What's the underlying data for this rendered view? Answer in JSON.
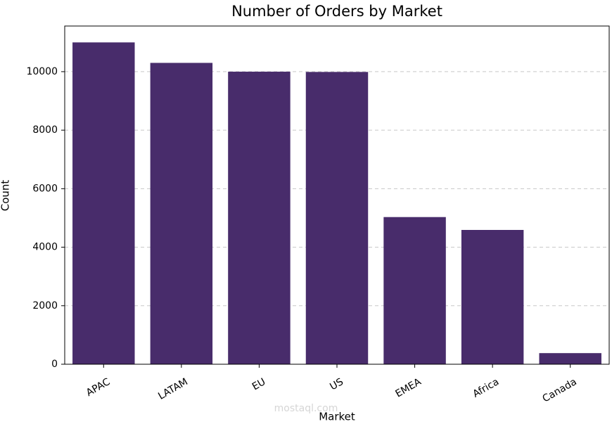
{
  "chart_data": {
    "type": "bar",
    "title": "Number of Orders by Market",
    "x_label": "Market",
    "y_label": "Count",
    "categories": [
      "APAC",
      "LATAM",
      "EU",
      "US",
      "EMEA",
      "Africa",
      "Canada"
    ],
    "values": [
      11000,
      10300,
      10000,
      9990,
      5030,
      4590,
      380
    ],
    "color": "#482c6b",
    "ylim": [
      0,
      11560
    ],
    "yticks": [
      0,
      2000,
      4000,
      6000,
      8000,
      10000
    ],
    "grid": true,
    "watermark": "mostaql.com"
  }
}
